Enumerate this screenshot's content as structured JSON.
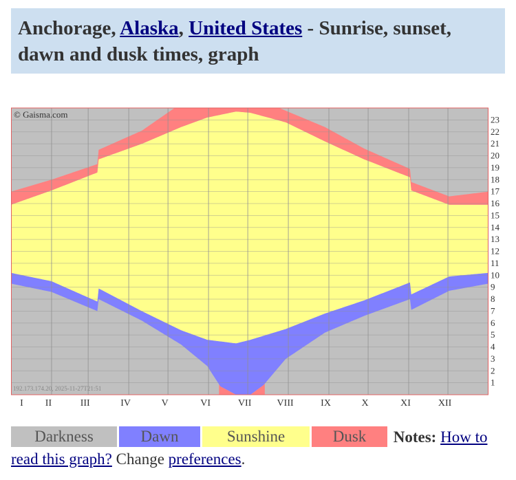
{
  "header": {
    "city": "Anchorage, ",
    "region": "Alaska",
    "sep": ", ",
    "country": "United States",
    "title_rest": " - Sunrise, sunset, dawn and dusk times, graph"
  },
  "colors": {
    "darkness": "#c0c0c0",
    "dawn": "#8080ff",
    "sunshine": "#ffff8c",
    "dusk": "#ff8080",
    "grid": "#909090",
    "frame": "#e06060"
  },
  "chart_data": {
    "type": "area",
    "copyright": "© Gaisma.com",
    "footer_note": "192.173.174.20, 2025-11-27T21:51",
    "x_tick_labels": [
      "I",
      "II",
      "III",
      "IV",
      "V",
      "VI",
      "VII",
      "VIII",
      "IX",
      "X",
      "XI",
      "XII"
    ],
    "y_tick_labels": [
      "1",
      "2",
      "3",
      "4",
      "5",
      "6",
      "7",
      "8",
      "9",
      "10",
      "11",
      "12",
      "13",
      "14",
      "15",
      "16",
      "17",
      "18",
      "19",
      "20",
      "21",
      "22",
      "23"
    ],
    "ylim": [
      0,
      24
    ],
    "xlim_days": [
      0,
      365
    ],
    "dst_start_day": 67,
    "dst_end_day": 306,
    "series": [
      {
        "name": "Dawn begins",
        "day": [
          0,
          31,
          66,
          67,
          100,
          130,
          150,
          160,
          172,
          183,
          193,
          210,
          240,
          270,
          305,
          306,
          335,
          365
        ],
        "hour": [
          9.3,
          8.6,
          7.0,
          8.0,
          6.2,
          4.2,
          2.4,
          0.7,
          0.0,
          0.0,
          0.8,
          3.0,
          5.2,
          6.6,
          8.0,
          7.1,
          8.7,
          9.3
        ]
      },
      {
        "name": "Sunrise",
        "day": [
          0,
          31,
          66,
          67,
          100,
          130,
          150,
          172,
          183,
          210,
          240,
          270,
          305,
          306,
          335,
          365
        ],
        "hour": [
          10.2,
          9.5,
          7.8,
          8.9,
          7.0,
          5.4,
          4.6,
          4.3,
          4.6,
          5.5,
          6.8,
          7.9,
          9.4,
          8.4,
          9.9,
          10.2
        ]
      },
      {
        "name": "Sunset",
        "day": [
          0,
          31,
          66,
          67,
          100,
          130,
          150,
          172,
          183,
          210,
          240,
          270,
          305,
          306,
          335,
          365
        ],
        "hour": [
          15.9,
          17.1,
          18.6,
          19.7,
          21.0,
          22.4,
          23.2,
          23.7,
          23.6,
          22.8,
          21.2,
          19.7,
          18.2,
          17.1,
          15.9,
          15.9
        ]
      },
      {
        "name": "Dusk ends",
        "day": [
          0,
          31,
          66,
          67,
          100,
          125,
          140,
          160,
          183,
          193,
          205,
          240,
          270,
          305,
          306,
          335,
          365
        ],
        "hour": [
          17.0,
          18.0,
          19.3,
          20.5,
          22.1,
          24.0,
          24.0,
          24.0,
          24.0,
          24.0,
          24.0,
          22.4,
          20.6,
          18.9,
          17.8,
          16.6,
          17.0
        ]
      }
    ]
  },
  "legend": {
    "darkness": "Darkness",
    "dawn": "Dawn",
    "sunshine": "Sunshine",
    "dusk": "Dusk",
    "notes_label": "Notes:",
    "how_to_link": "How to read this graph?",
    "change_text": " Change ",
    "preferences_link": "preferences",
    "period": "."
  }
}
